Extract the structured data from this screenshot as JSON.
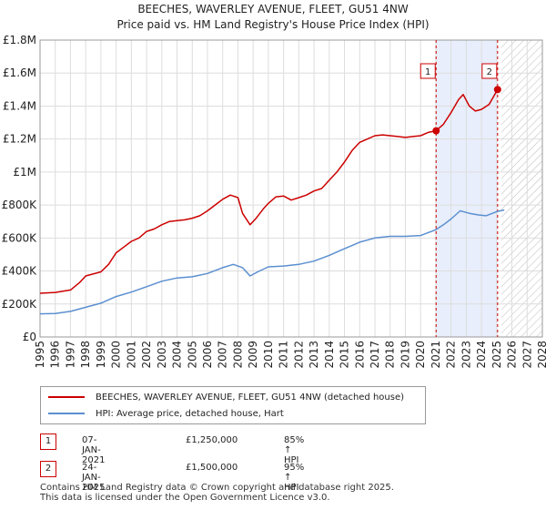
{
  "header": {
    "title": "BEECHES, WAVERLEY AVENUE, FLEET, GU51 4NW",
    "subtitle": "Price paid vs. HM Land Registry's House Price Index (HPI)"
  },
  "chart_data": {
    "type": "line",
    "title": "BEECHES, WAVERLEY AVENUE, FLEET, GU51 4NW",
    "subtitle": "Price paid vs. HM Land Registry's House Price Index (HPI)",
    "xlim": [
      1995,
      2028
    ],
    "ylim": [
      0,
      1800000
    ],
    "y_ticks": [
      {
        "value": 0,
        "label": "£0"
      },
      {
        "value": 200000,
        "label": "£200K"
      },
      {
        "value": 400000,
        "label": "£400K"
      },
      {
        "value": 600000,
        "label": "£600K"
      },
      {
        "value": 800000,
        "label": "£800K"
      },
      {
        "value": 1000000,
        "label": "£1M"
      },
      {
        "value": 1200000,
        "label": "£1.2M"
      },
      {
        "value": 1400000,
        "label": "£1.4M"
      },
      {
        "value": 1600000,
        "label": "£1.6M"
      },
      {
        "value": 1800000,
        "label": "£1.8M"
      }
    ],
    "x_ticks": [
      "1995",
      "1996",
      "1997",
      "1998",
      "1999",
      "2000",
      "2001",
      "2002",
      "2003",
      "2004",
      "2005",
      "2006",
      "2007",
      "2008",
      "2009",
      "2010",
      "2011",
      "2012",
      "2013",
      "2014",
      "2015",
      "2016",
      "2017",
      "2018",
      "2019",
      "2020",
      "2021",
      "2022",
      "2023",
      "2024",
      "2025",
      "2026",
      "2027",
      "2028"
    ],
    "grid": true,
    "shaded_range": [
      2021.02,
      2025.06
    ],
    "hatched_from": 2025.3,
    "series": [
      {
        "name": "BEECHES, WAVERLEY AVENUE, FLEET, GU51 4NW (detached house)",
        "color": "#cc0000",
        "points": [
          [
            1995.0,
            265000
          ],
          [
            1996.0,
            270000
          ],
          [
            1997.0,
            285000
          ],
          [
            1997.6,
            330000
          ],
          [
            1998.0,
            370000
          ],
          [
            1999.0,
            395000
          ],
          [
            1999.5,
            440000
          ],
          [
            2000.0,
            510000
          ],
          [
            2000.5,
            545000
          ],
          [
            2001.0,
            580000
          ],
          [
            2001.5,
            600000
          ],
          [
            2002.0,
            640000
          ],
          [
            2002.5,
            655000
          ],
          [
            2003.0,
            680000
          ],
          [
            2003.5,
            700000
          ],
          [
            2004.0,
            705000
          ],
          [
            2004.5,
            710000
          ],
          [
            2005.0,
            720000
          ],
          [
            2005.5,
            735000
          ],
          [
            2006.0,
            765000
          ],
          [
            2006.5,
            800000
          ],
          [
            2007.0,
            835000
          ],
          [
            2007.5,
            860000
          ],
          [
            2008.0,
            845000
          ],
          [
            2008.3,
            750000
          ],
          [
            2008.8,
            680000
          ],
          [
            2009.2,
            720000
          ],
          [
            2009.7,
            780000
          ],
          [
            2010.0,
            810000
          ],
          [
            2010.5,
            850000
          ],
          [
            2011.0,
            855000
          ],
          [
            2011.5,
            830000
          ],
          [
            2012.0,
            845000
          ],
          [
            2012.5,
            860000
          ],
          [
            2013.0,
            885000
          ],
          [
            2013.5,
            900000
          ],
          [
            2014.0,
            950000
          ],
          [
            2014.5,
            1000000
          ],
          [
            2015.0,
            1060000
          ],
          [
            2015.5,
            1130000
          ],
          [
            2016.0,
            1180000
          ],
          [
            2016.5,
            1200000
          ],
          [
            2017.0,
            1220000
          ],
          [
            2017.5,
            1225000
          ],
          [
            2018.0,
            1220000
          ],
          [
            2018.5,
            1215000
          ],
          [
            2019.0,
            1210000
          ],
          [
            2019.5,
            1215000
          ],
          [
            2020.0,
            1220000
          ],
          [
            2020.5,
            1240000
          ],
          [
            2021.02,
            1250000
          ],
          [
            2021.5,
            1290000
          ],
          [
            2022.0,
            1360000
          ],
          [
            2022.5,
            1440000
          ],
          [
            2022.8,
            1470000
          ],
          [
            2023.2,
            1400000
          ],
          [
            2023.6,
            1370000
          ],
          [
            2024.0,
            1380000
          ],
          [
            2024.5,
            1410000
          ],
          [
            2025.06,
            1500000
          ]
        ]
      },
      {
        "name": "HPI: Average price, detached house, Hart",
        "color": "#5b8fd0",
        "points": [
          [
            1995.0,
            140000
          ],
          [
            1996.0,
            142000
          ],
          [
            1997.0,
            155000
          ],
          [
            1998.0,
            180000
          ],
          [
            1999.0,
            205000
          ],
          [
            2000.0,
            245000
          ],
          [
            2001.0,
            272000
          ],
          [
            2002.0,
            305000
          ],
          [
            2003.0,
            338000
          ],
          [
            2004.0,
            358000
          ],
          [
            2005.0,
            365000
          ],
          [
            2006.0,
            385000
          ],
          [
            2007.0,
            420000
          ],
          [
            2007.7,
            440000
          ],
          [
            2008.3,
            420000
          ],
          [
            2008.8,
            370000
          ],
          [
            2009.3,
            395000
          ],
          [
            2010.0,
            425000
          ],
          [
            2011.0,
            430000
          ],
          [
            2012.0,
            440000
          ],
          [
            2013.0,
            460000
          ],
          [
            2014.0,
            495000
          ],
          [
            2015.0,
            535000
          ],
          [
            2016.0,
            575000
          ],
          [
            2017.0,
            600000
          ],
          [
            2018.0,
            610000
          ],
          [
            2019.0,
            610000
          ],
          [
            2020.0,
            615000
          ],
          [
            2021.0,
            650000
          ],
          [
            2021.5,
            680000
          ],
          [
            2022.0,
            715000
          ],
          [
            2022.6,
            765000
          ],
          [
            2023.2,
            750000
          ],
          [
            2023.8,
            740000
          ],
          [
            2024.3,
            735000
          ],
          [
            2025.0,
            760000
          ],
          [
            2025.5,
            770000
          ]
        ]
      }
    ],
    "markers": [
      {
        "id": "1",
        "x": 2021.02,
        "y": 1250000
      },
      {
        "id": "2",
        "x": 2025.06,
        "y": 1500000
      }
    ]
  },
  "legend": {
    "items": [
      {
        "label": "BEECHES, WAVERLEY AVENUE, FLEET, GU51 4NW (detached house)",
        "color": "#cc0000"
      },
      {
        "label": "HPI: Average price, detached house, Hart",
        "color": "#5b8fd0"
      }
    ]
  },
  "transactions": [
    {
      "num": "1",
      "date": "07-JAN-2021",
      "price": "£1,250,000",
      "hpi": "85% ↑ HPI"
    },
    {
      "num": "2",
      "date": "24-JAN-2025",
      "price": "£1,500,000",
      "hpi": "95% ↑ HPI"
    }
  ],
  "footer": {
    "line1": "Contains HM Land Registry data © Crown copyright and database right 2025.",
    "line2": "This data is licensed under the Open Government Licence v3.0."
  }
}
